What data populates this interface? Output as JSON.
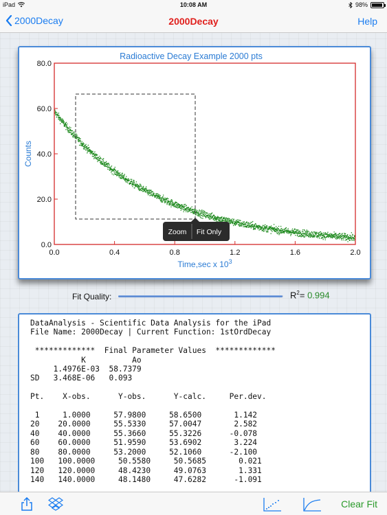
{
  "status_bar": {
    "device": "iPad",
    "time": "10:08 AM",
    "battery": "98%"
  },
  "nav": {
    "back_label": "2000Decay",
    "title": "2000Decay",
    "help_label": "Help"
  },
  "chart_data": {
    "type": "scatter",
    "title": "Radioactive Decay Example 2000 pts",
    "xlabel": "Time,sec x 10",
    "xlabel_exponent": "3",
    "ylabel": "Counts",
    "xlim": [
      0.0,
      2.0
    ],
    "ylim": [
      0.0,
      80.0
    ],
    "x_ticks": [
      "0.0",
      "0.4",
      "0.8",
      "1.2",
      "1.6",
      "2.0"
    ],
    "y_ticks": [
      "0.0",
      "20.0",
      "40.0",
      "60.0",
      "80.0"
    ],
    "grid": false,
    "n_points": 2000,
    "fit_model": "1stOrdDecay",
    "fit_params": {
      "K": 0.0014976,
      "Ao": 58.7379
    },
    "series": [
      {
        "x": [
          0.0,
          0.1,
          0.2,
          0.3,
          0.4,
          0.5,
          0.6,
          0.7,
          0.8,
          0.9,
          1.0,
          1.1,
          1.2,
          1.3,
          1.4,
          1.5,
          1.6,
          1.7,
          1.8,
          1.9,
          2.0
        ],
        "y": [
          58.7,
          50.6,
          43.6,
          37.5,
          32.3,
          27.8,
          24.0,
          20.6,
          17.8,
          15.3,
          13.2,
          11.3,
          9.7,
          8.4,
          7.2,
          6.2,
          5.3,
          4.6,
          4.0,
          3.4,
          2.9
        ]
      }
    ],
    "colors": {
      "points": "#1f8a1f",
      "axes_frame": "#d42a2a",
      "labels": "#2a7bd4"
    }
  },
  "zoom_popup": {
    "zoom_label": "Zoom",
    "fit_only_label": "Fit Only"
  },
  "fit_quality": {
    "label": "Fit Quality:",
    "r2_label": "R",
    "r2_sup": "2",
    "r2_eq": "= ",
    "r2_value": "0.994",
    "value": 0.994
  },
  "results_text": [
    "DataAnalysis - Scientific Data Analysis for the iPad",
    "File Name: 2000Decay | Current Function: 1stOrdDecay",
    "",
    " *************  Final Parameter Values  *************",
    "           K          Ao",
    "     1.4976E-03  58.7379",
    "SD   3.468E-06   0.093",
    "",
    "Pt.    X-obs.      Y-obs.      Y-calc.     Per.dev.",
    "",
    " 1     1.0000     57.9800     58.6500       1.142",
    "20    20.0000     55.5330     57.0047       2.582",
    "40    40.0000     55.3660     55.3226      -0.078",
    "60    60.0000     51.9590     53.6902       3.224",
    "80    80.0000     53.2000     52.1060      -2.100",
    "100   100.0000     50.5580     50.5685       0.021",
    "120   120.0000     48.4230     49.0763       1.331",
    "140   140.0000     48.1480     47.6282      -1.091"
  ],
  "toolbar": {
    "share_icon": "share-icon",
    "dropbox_icon": "dropbox-icon",
    "scatter_icon": "scatter-plot-icon",
    "curve_icon": "curve-fit-icon",
    "clear_fit_label": "Clear Fit"
  }
}
